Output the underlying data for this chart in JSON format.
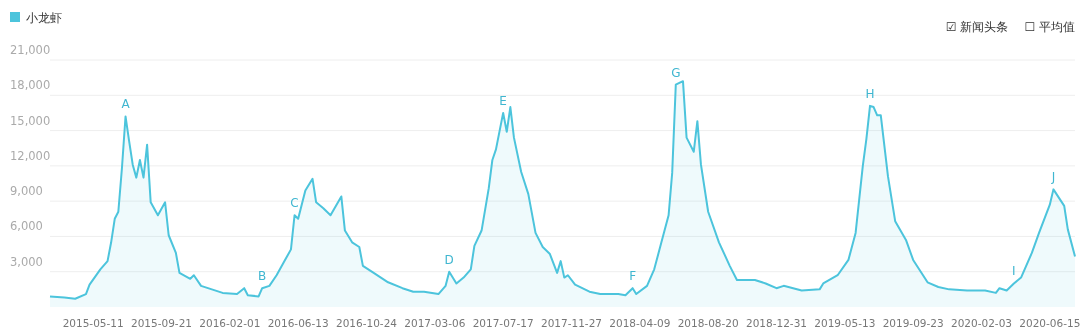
{
  "chart_data": {
    "type": "area",
    "legend": "top left",
    "grid": "y",
    "xlim": [
      "2015-02-16",
      "2020-08-03"
    ],
    "ylim": [
      0,
      21000
    ],
    "xticks": [
      "2015-05-11",
      "2015-09-21",
      "2016-02-01",
      "2016-06-13",
      "2016-10-24",
      "2017-03-06",
      "2017-07-17",
      "2017-11-27",
      "2018-04-09",
      "2018-08-20",
      "2018-12-31",
      "2019-05-13",
      "2019-09-23",
      "2020-02-03",
      "2020-06-15"
    ],
    "yticks": [
      {
        "value": 3000,
        "label": "3,000"
      },
      {
        "value": 6000,
        "label": "6,000"
      },
      {
        "value": 9000,
        "label": "9,000"
      },
      {
        "value": 12000,
        "label": "12,000"
      },
      {
        "value": 15000,
        "label": "15,000"
      },
      {
        "value": 18000,
        "label": "18,000"
      },
      {
        "value": 21000,
        "label": "21,000"
      }
    ],
    "series": [
      {
        "name": "小龙虾",
        "color": "#4cc4dc",
        "x": [
          "2015-02-16",
          "2015-03-16",
          "2015-04-06",
          "2015-04-27",
          "2015-05-04",
          "2015-05-25",
          "2015-06-08",
          "2015-06-15",
          "2015-06-22",
          "2015-06-29",
          "2015-07-06",
          "2015-07-13",
          "2015-07-20",
          "2015-07-27",
          "2015-08-03",
          "2015-08-10",
          "2015-08-17",
          "2015-08-24",
          "2015-08-31",
          "2015-09-14",
          "2015-09-28",
          "2015-10-05",
          "2015-10-19",
          "2015-10-26",
          "2015-11-16",
          "2015-11-23",
          "2015-12-07",
          "2015-12-28",
          "2016-01-18",
          "2016-02-15",
          "2016-02-29",
          "2016-03-07",
          "2016-03-28",
          "2016-04-04",
          "2016-04-18",
          "2016-05-02",
          "2016-05-16",
          "2016-05-30",
          "2016-06-06",
          "2016-06-13",
          "2016-06-27",
          "2016-07-11",
          "2016-07-18",
          "2016-08-01",
          "2016-08-15",
          "2016-09-05",
          "2016-09-12",
          "2016-09-26",
          "2016-10-10",
          "2016-10-17",
          "2016-11-07",
          "2016-11-21",
          "2016-12-05",
          "2017-01-02",
          "2017-01-23",
          "2017-02-13",
          "2017-03-13",
          "2017-03-27",
          "2017-04-03",
          "2017-04-17",
          "2017-05-01",
          "2017-05-15",
          "2017-05-22",
          "2017-06-05",
          "2017-06-19",
          "2017-06-26",
          "2017-07-03",
          "2017-07-17",
          "2017-07-24",
          "2017-07-31",
          "2017-08-07",
          "2017-08-21",
          "2017-09-04",
          "2017-09-18",
          "2017-10-02",
          "2017-10-16",
          "2017-10-30",
          "2017-11-06",
          "2017-11-13",
          "2017-11-20",
          "2017-12-04",
          "2018-01-01",
          "2018-01-22",
          "2018-02-26",
          "2018-03-12",
          "2018-03-26",
          "2018-04-02",
          "2018-04-23",
          "2018-05-07",
          "2018-05-21",
          "2018-06-04",
          "2018-06-11",
          "2018-06-18",
          "2018-07-02",
          "2018-07-09",
          "2018-07-23",
          "2018-07-30",
          "2018-08-06",
          "2018-08-20",
          "2018-09-10",
          "2018-10-01",
          "2018-10-15",
          "2018-11-19",
          "2018-12-10",
          "2018-12-31",
          "2019-01-14",
          "2019-02-18",
          "2019-03-25",
          "2019-04-01",
          "2019-04-29",
          "2019-05-20",
          "2019-06-03",
          "2019-06-17",
          "2019-06-24",
          "2019-07-01",
          "2019-07-08",
          "2019-07-15",
          "2019-07-22",
          "2019-08-05",
          "2019-08-19",
          "2019-09-09",
          "2019-09-23",
          "2019-10-21",
          "2019-11-11",
          "2019-12-02",
          "2020-01-06",
          "2020-02-10",
          "2020-03-02",
          "2020-03-09",
          "2020-03-23",
          "2020-04-06",
          "2020-04-20",
          "2020-05-11",
          "2020-05-25",
          "2020-06-15",
          "2020-06-22",
          "2020-07-13",
          "2020-07-20",
          "2020-08-03"
        ],
        "values": [
          900,
          800,
          700,
          1100,
          1900,
          3200,
          3900,
          5500,
          7500,
          8100,
          11800,
          16200,
          14100,
          12100,
          11000,
          12500,
          11000,
          13800,
          8900,
          7800,
          8900,
          6100,
          4600,
          2900,
          2400,
          2700,
          1800,
          1500,
          1200,
          1100,
          1600,
          1000,
          900,
          1600,
          1800,
          2700,
          3800,
          4900,
          7800,
          7500,
          9900,
          10900,
          8900,
          8400,
          7800,
          9400,
          6500,
          5500,
          5100,
          3500,
          2900,
          2500,
          2100,
          1600,
          1300,
          1300,
          1100,
          1800,
          3000,
          2000,
          2500,
          3200,
          5200,
          6500,
          10100,
          12500,
          13400,
          16500,
          14900,
          17000,
          14400,
          11500,
          9600,
          6300,
          5100,
          4500,
          2900,
          3900,
          2500,
          2700,
          1900,
          1300,
          1100,
          1100,
          1000,
          1600,
          1100,
          1800,
          3200,
          5500,
          7800,
          11400,
          18900,
          19200,
          14400,
          13200,
          15800,
          12100,
          8100,
          5500,
          3500,
          2300,
          2300,
          2000,
          1600,
          1800,
          1400,
          1500,
          2000,
          2700,
          4000,
          6300,
          12000,
          14300,
          17100,
          17000,
          16300,
          16300,
          11100,
          7300,
          5700,
          4000,
          2100,
          1700,
          1500,
          1400,
          1400,
          1200,
          1600,
          1400,
          2000,
          2500,
          4600,
          6300,
          8700,
          10000,
          8600,
          6600,
          4300
        ]
      }
    ],
    "annotations": [
      {
        "text": "A",
        "x": "2015-07-13",
        "y": 16200
      },
      {
        "text": "B",
        "x": "2016-04-04",
        "y": 1600
      },
      {
        "text": "C",
        "x": "2016-06-06",
        "y": 7800
      },
      {
        "text": "D",
        "x": "2017-04-03",
        "y": 3000
      },
      {
        "text": "E",
        "x": "2017-07-17",
        "y": 16500
      },
      {
        "text": "F",
        "x": "2018-03-26",
        "y": 1600
      },
      {
        "text": "G",
        "x": "2018-06-18",
        "y": 18900
      },
      {
        "text": "H",
        "x": "2019-07-01",
        "y": 17100
      },
      {
        "text": "I",
        "x": "2020-04-06",
        "y": 2000
      },
      {
        "text": "J",
        "x": "2020-06-22",
        "y": 10000
      },
      "☑ 新闻头条",
      "☐ 平均值"
    ]
  }
}
